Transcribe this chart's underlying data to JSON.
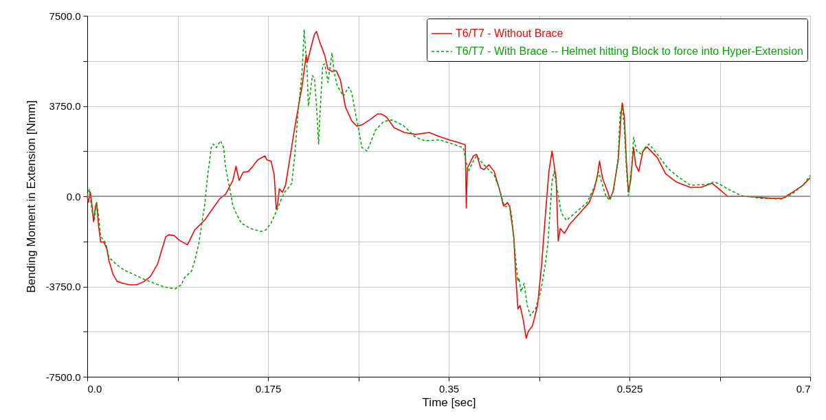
{
  "chart_data": {
    "type": "line",
    "xlabel": "Time [sec]",
    "ylabel": "Bending Moment in Extension [Nmm]",
    "xlim": [
      0,
      0.7
    ],
    "ylim": [
      -7500,
      7500
    ],
    "xticks": [
      {
        "value": 0,
        "label": "0.0"
      },
      {
        "value": 0.0875,
        "label": null
      },
      0.175,
      {
        "value": 0.2625,
        "label": null
      },
      0.35,
      {
        "value": 0.4375,
        "label": null
      },
      0.525,
      {
        "value": 0.6125,
        "label": null
      },
      0.7
    ],
    "yticks": [
      {
        "value": -7500,
        "label": "-7500.0"
      },
      {
        "value": -5625,
        "label": null
      },
      {
        "value": -3750,
        "label": "-3750.0"
      },
      {
        "value": -1875,
        "label": null
      },
      {
        "value": 0,
        "label": "0.0"
      },
      {
        "value": 1875,
        "label": null
      },
      {
        "value": 3750,
        "label": "3750.0"
      },
      {
        "value": 5625,
        "label": null
      },
      {
        "value": 7500,
        "label": "7500.0"
      }
    ],
    "grid": true,
    "legend": "top right",
    "marker": "none",
    "ref_lines": [
      {
        "axis": "y",
        "value": 0,
        "label": null,
        "color": "#808080"
      }
    ],
    "series": [
      {
        "name": "T6/T7 - Without Brace",
        "color": "#ff0000",
        "line_style": "solid",
        "x": [
          0,
          0.001,
          0.003,
          0.005,
          0.006,
          0.008,
          0.009,
          0.011,
          0.013,
          0.016,
          0.019,
          0.021,
          0.025,
          0.029,
          0.035,
          0.041,
          0.048,
          0.055,
          0.061,
          0.068,
          0.076,
          0.079,
          0.084,
          0.089,
          0.097,
          0.104,
          0.114,
          0.121,
          0.128,
          0.134,
          0.141,
          0.144,
          0.147,
          0.151,
          0.156,
          0.16,
          0.165,
          0.172,
          0.174,
          0.178,
          0.181,
          0.183,
          0.184,
          0.186,
          0.189,
          0.192,
          0.201,
          0.208,
          0.212,
          0.213,
          0.216,
          0.22,
          0.222,
          0.225,
          0.23,
          0.233,
          0.237,
          0.241,
          0.245,
          0.25,
          0.256,
          0.261,
          0.266,
          0.274,
          0.281,
          0.285,
          0.29,
          0.297,
          0.307,
          0.318,
          0.331,
          0.341,
          0.351,
          0.358,
          0.366,
          0.367,
          0.368,
          0.374,
          0.377,
          0.381,
          0.384,
          0.389,
          0.394,
          0.399,
          0.403,
          0.407,
          0.409,
          0.413,
          0.415,
          0.417,
          0.419,
          0.422,
          0.425,
          0.427,
          0.431,
          0.436,
          0.44,
          0.444,
          0.447,
          0.45,
          0.454,
          0.456,
          0.458,
          0.462,
          0.467,
          0.477,
          0.486,
          0.491,
          0.494,
          0.496,
          0.499,
          0.504,
          0.506,
          0.509,
          0.514,
          0.517,
          0.518,
          0.52,
          0.522,
          0.524,
          0.526,
          0.529,
          0.531,
          0.534,
          0.538,
          0.542,
          0.552,
          0.56,
          0.57,
          0.584,
          0.594,
          0.605,
          0.61,
          0.62,
          0.633,
          0.647,
          0.663,
          0.673,
          0.683,
          0.693,
          0.7
        ],
        "values": [
          0,
          -250,
          170,
          -540,
          -1050,
          -400,
          -260,
          -1250,
          -1900,
          -1900,
          -2200,
          -2680,
          -3250,
          -3540,
          -3620,
          -3680,
          -3680,
          -3540,
          -3340,
          -2820,
          -1680,
          -1600,
          -1630,
          -1820,
          -2020,
          -1400,
          -970,
          -540,
          -110,
          90,
          660,
          1250,
          660,
          1000,
          1030,
          1230,
          1510,
          1680,
          1510,
          1460,
          880,
          -540,
          -400,
          310,
          170,
          460,
          2880,
          4590,
          5880,
          5560,
          6080,
          6730,
          6850,
          6420,
          5850,
          5280,
          5190,
          5220,
          4850,
          3710,
          3140,
          2910,
          2970,
          3190,
          3420,
          3420,
          3280,
          2850,
          2650,
          2570,
          2650,
          2480,
          2340,
          2250,
          2140,
          -490,
          1170,
          1680,
          1740,
          1170,
          1110,
          1310,
          1030,
          310,
          -400,
          -260,
          -430,
          -1680,
          -3390,
          -4680,
          -4540,
          -5100,
          -5900,
          -5620,
          -5390,
          -4540,
          -2820,
          -540,
          1030,
          1880,
          740,
          -1860,
          -1340,
          -1540,
          -1170,
          -690,
          -260,
          310,
          880,
          1460,
          740,
          170,
          -110,
          170,
          1460,
          3450,
          3880,
          3310,
          1460,
          170,
          600,
          2020,
          1310,
          1030,
          1880,
          2050,
          1600,
          940,
          600,
          370,
          370,
          540,
          370,
          0,
          0,
          -30,
          -90,
          -90,
          170,
          460,
          770
        ]
      },
      {
        "name": "T6/T7 - With Brace -- Helmet hitting Block to force into Hyper-Extension",
        "color": "#00aa00",
        "line_style": "dashed",
        "x": [
          0,
          0.001,
          0.002,
          0.003,
          0.005,
          0.007,
          0.008,
          0.009,
          0.011,
          0.013,
          0.016,
          0.018,
          0.021,
          0.028,
          0.035,
          0.045,
          0.055,
          0.065,
          0.075,
          0.085,
          0.091,
          0.094,
          0.101,
          0.104,
          0.108,
          0.111,
          0.114,
          0.116,
          0.12,
          0.122,
          0.125,
          0.129,
          0.132,
          0.134,
          0.138,
          0.141,
          0.144,
          0.149,
          0.158,
          0.168,
          0.173,
          0.178,
          0.184,
          0.188,
          0.191,
          0.194,
          0.198,
          0.201,
          0.204,
          0.208,
          0.21,
          0.213,
          0.214,
          0.216,
          0.218,
          0.22,
          0.222,
          0.224,
          0.225,
          0.228,
          0.23,
          0.233,
          0.237,
          0.239,
          0.242,
          0.248,
          0.253,
          0.256,
          0.261,
          0.266,
          0.271,
          0.279,
          0.287,
          0.295,
          0.306,
          0.318,
          0.327,
          0.341,
          0.354,
          0.364,
          0.369,
          0.373,
          0.377,
          0.381,
          0.387,
          0.394,
          0.399,
          0.404,
          0.409,
          0.411,
          0.414,
          0.417,
          0.418,
          0.42,
          0.423,
          0.426,
          0.429,
          0.434,
          0.439,
          0.443,
          0.446,
          0.45,
          0.452,
          0.455,
          0.459,
          0.464,
          0.474,
          0.484,
          0.49,
          0.494,
          0.495,
          0.498,
          0.502,
          0.506,
          0.51,
          0.514,
          0.516,
          0.518,
          0.52,
          0.522,
          0.524,
          0.527,
          0.529,
          0.532,
          0.537,
          0.54,
          0.544,
          0.552,
          0.562,
          0.57,
          0.584,
          0.6,
          0.607,
          0.612,
          0.62,
          0.633,
          0.653,
          0.673,
          0.683,
          0.693,
          0.7
        ],
        "values": [
          0,
          170,
          310,
          -110,
          -690,
          -970,
          -540,
          -260,
          -830,
          -1680,
          -1830,
          -1970,
          -2540,
          -2820,
          -3050,
          -3250,
          -3450,
          -3620,
          -3770,
          -3850,
          -3680,
          -3390,
          -3110,
          -2680,
          -1970,
          -1110,
          -260,
          660,
          2020,
          2170,
          2020,
          2310,
          2020,
          1170,
          310,
          -400,
          -690,
          -1110,
          -1340,
          -1460,
          -1400,
          -1110,
          -540,
          -110,
          170,
          310,
          540,
          1740,
          3450,
          5160,
          6930,
          5160,
          3740,
          4310,
          5020,
          4880,
          3740,
          2170,
          3170,
          5450,
          5500,
          4730,
          5960,
          5160,
          4590,
          4160,
          4540,
          4310,
          3170,
          2020,
          1880,
          2740,
          3110,
          3170,
          2940,
          2450,
          2310,
          2340,
          2170,
          2020,
          1030,
          1400,
          1680,
          1460,
          1170,
          880,
          310,
          -430,
          -400,
          -830,
          -2250,
          -3540,
          -3390,
          -3970,
          -3620,
          -4540,
          -4960,
          -4680,
          -3970,
          -2970,
          -1970,
          600,
          1030,
          310,
          -690,
          -1000,
          -630,
          -260,
          310,
          740,
          1030,
          600,
          30,
          -170,
          310,
          1600,
          3450,
          3740,
          2880,
          1170,
          30,
          1170,
          2450,
          1880,
          1740,
          2020,
          2170,
          1740,
          1170,
          880,
          460,
          490,
          600,
          510,
          310,
          30,
          -90,
          -110,
          110,
          460,
          860
        ]
      }
    ]
  }
}
